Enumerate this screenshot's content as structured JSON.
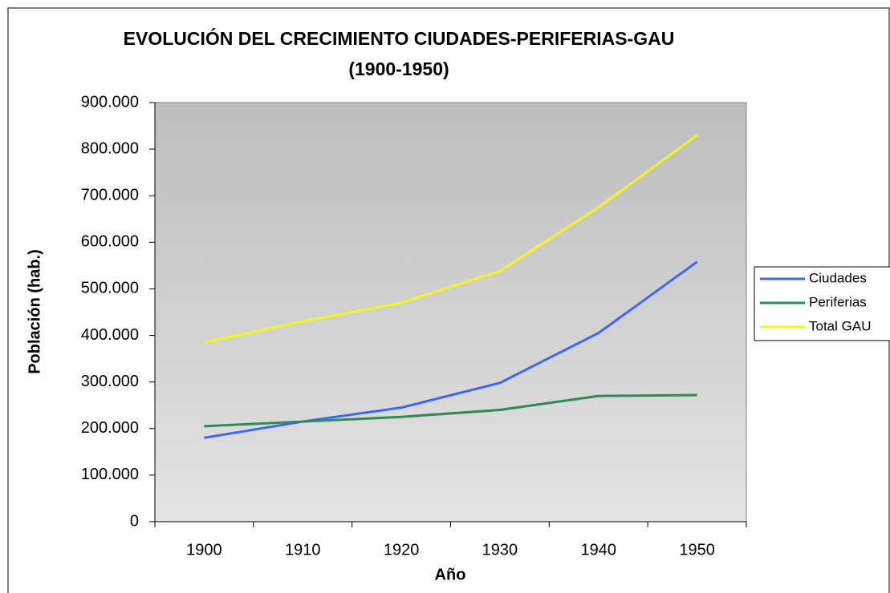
{
  "chart_data": {
    "type": "line",
    "title": [
      "EVOLUCIÓN DEL CRECIMIENTO CIUDADES-PERIFERIAS-GAU",
      "(1900-1950)"
    ],
    "x_label": "Año",
    "y_label": "Población (hab.)",
    "categories": [
      "1900",
      "1910",
      "1920",
      "1930",
      "1940",
      "1950"
    ],
    "series": [
      {
        "name": "Ciudades",
        "color": "#3f67f0",
        "values": [
          180000,
          215000,
          245000,
          298000,
          405000,
          558000
        ]
      },
      {
        "name": "Periferias",
        "color": "#2e8b57",
        "values": [
          205000,
          215000,
          225000,
          240000,
          270000,
          272000
        ]
      },
      {
        "name": "Total GAU",
        "color": "#f5f51e",
        "values": [
          385000,
          430000,
          470000,
          538000,
          675000,
          830000
        ]
      }
    ],
    "ylim": [
      0,
      900000
    ],
    "yticks": [
      0,
      {
        "value": 100000,
        "label": "100.000"
      },
      {
        "value": 200000,
        "label": "200.000"
      },
      {
        "value": 300000,
        "label": "300.000"
      },
      {
        "value": 400000,
        "label": "400.000"
      },
      {
        "value": 500000,
        "label": "500.000"
      },
      {
        "value": 600000,
        "label": "600.000"
      },
      {
        "value": 700000,
        "label": "700.000"
      },
      {
        "value": 800000,
        "label": "800.000"
      },
      {
        "value": 900000,
        "label": "900.000"
      }
    ],
    "legend": "right"
  }
}
